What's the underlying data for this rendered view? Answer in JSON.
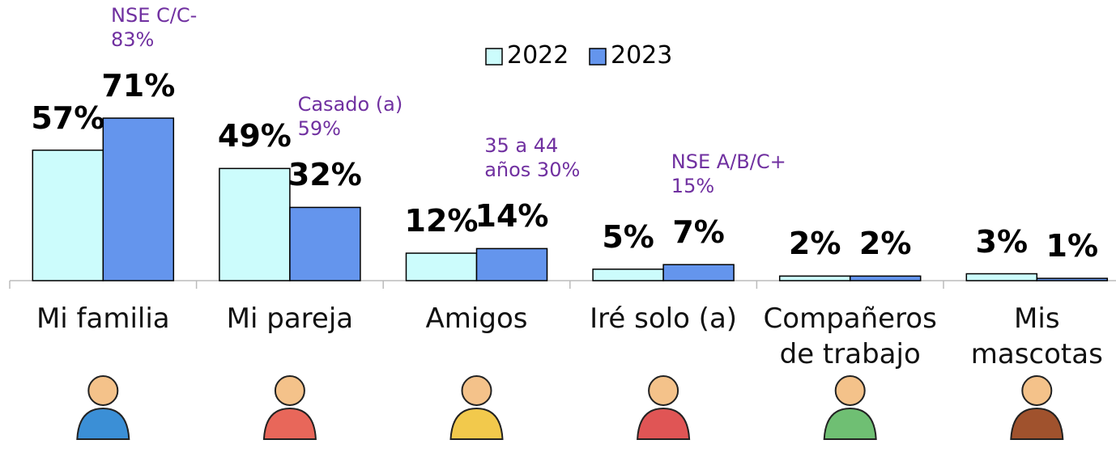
{
  "chart_data": {
    "type": "bar",
    "categories": [
      "Mi familia",
      "Mi pareja",
      "Amigos",
      "Iré solo (a)",
      "Compañeros\nde trabajo",
      "Mis\nmascotas"
    ],
    "series": [
      {
        "name": "2022",
        "color": "#ccfcfc",
        "values": [
          57,
          49,
          12,
          5,
          2,
          3
        ],
        "value_labels": [
          "57%",
          "49%",
          "12%",
          "5%",
          "2%",
          "3%"
        ]
      },
      {
        "name": "2023",
        "color": "#6495ed",
        "values": [
          71,
          32,
          14,
          7,
          2,
          1
        ],
        "value_labels": [
          "71%",
          "32%",
          "14%",
          "7%",
          "2%",
          "1%"
        ]
      }
    ],
    "annotations": [
      "NSE C/C-\n83%",
      "Casado (a)\n59%",
      "35 a 44\naños 30%",
      "NSE A/B/C+\n15%",
      null,
      null
    ],
    "ylim": [
      0,
      100
    ]
  }
}
